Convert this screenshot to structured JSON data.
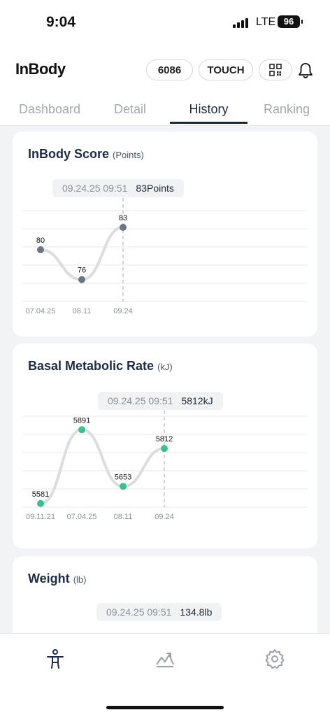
{
  "status_bar": {
    "time": "9:04",
    "network": "LTE",
    "battery": "96"
  },
  "header": {
    "logo": "InBody",
    "code_button": "6086",
    "touch_button": "TOUCH",
    "qr_icon": "qr-code-icon",
    "bell_icon": "bell-icon"
  },
  "tabs": [
    {
      "label": "Dashboard",
      "active": false
    },
    {
      "label": "Detail",
      "active": false
    },
    {
      "label": "History",
      "active": true
    },
    {
      "label": "Ranking",
      "active": false
    }
  ],
  "cards": {
    "score": {
      "title": "InBody Score",
      "unit": "(Points)",
      "tooltip_date": "09.24.25 09:51",
      "tooltip_value": "83Points"
    },
    "bmr": {
      "title": "Basal Metabolic Rate",
      "unit": "(kJ)",
      "tooltip_date": "09.24.25 09:51",
      "tooltip_value": "5812kJ"
    },
    "weight": {
      "title": "Weight",
      "unit": "(lb)",
      "tooltip_date": "09.24.25 09:51",
      "tooltip_value": "134.8lb"
    }
  },
  "chart_data": [
    {
      "type": "line",
      "title": "InBody Score",
      "categories": [
        "07.04.25",
        "08.11",
        "09.24"
      ],
      "values": [
        80,
        76,
        83
      ],
      "ylim": [
        74,
        86
      ],
      "point_color": "#6b7585",
      "line_color": "#dcdde0",
      "grid": true
    },
    {
      "type": "line",
      "title": "Basal Metabolic Rate",
      "categories": [
        "09.11.21",
        "07.04.25",
        "08.11",
        "09.24"
      ],
      "values": [
        5581,
        5891,
        5653,
        5812
      ],
      "ylim": [
        5560,
        5930
      ],
      "point_color": "#3cc08e",
      "line_color": "#dcdde0",
      "grid": true
    }
  ],
  "bottom_nav": [
    {
      "icon": "body-icon",
      "active": true
    },
    {
      "icon": "chart-trend-icon",
      "active": false
    },
    {
      "icon": "gear-icon",
      "active": false
    }
  ]
}
